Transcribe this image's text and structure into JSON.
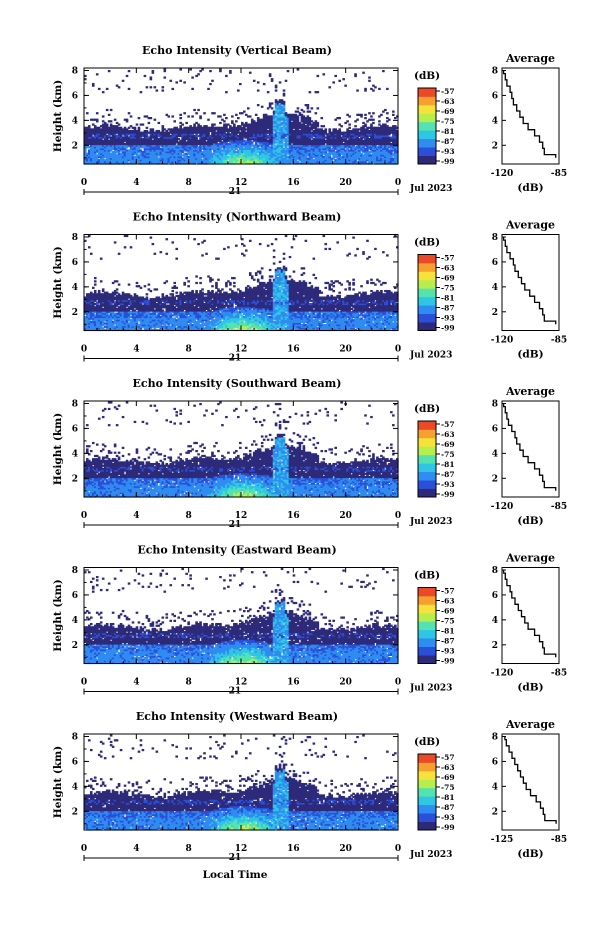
{
  "figure": {
    "xlabel": "Local Time",
    "day_label": "21",
    "month_year_label": "Jul 2023",
    "ylabel": "Height (km)",
    "avg_title": "Average",
    "avg_xlabel": "(dB)",
    "colorbar_unit": "(dB)"
  },
  "chart_data": [
    {
      "type": "heatmap",
      "title": "Echo Intensity (Vertical Beam)",
      "xlabel": "Local Time",
      "ylabel": "Height (km)",
      "x_ticks": [
        "0",
        "4",
        "8",
        "12",
        "16",
        "20",
        "0"
      ],
      "xlim": [
        0,
        24
      ],
      "y_ticks": [
        "2",
        "4",
        "6",
        "8"
      ],
      "ylim": [
        0.5,
        8.2
      ],
      "colorbar": {
        "label": "(dB)",
        "ticks": [
          "-57",
          "-63",
          "-69",
          "-75",
          "-81",
          "-87",
          "-93",
          "-99"
        ],
        "colors": [
          "#2e2a7a",
          "#2b4fd8",
          "#2f8cf0",
          "#2fc6e6",
          "#54e2b0",
          "#b6ee4e",
          "#f6e23a",
          "#f6a030",
          "#ea4a28"
        ]
      },
      "average_profile": {
        "title": "Average",
        "xlabel": "(dB)",
        "x_ticks": [
          "-120",
          "-85"
        ],
        "xlim": [
          -120,
          -85
        ],
        "y_ticks": [
          "2",
          "4",
          "6",
          "8"
        ],
        "ylim": [
          0.5,
          8.2
        ],
        "height_km": [
          8.0,
          7.5,
          7.0,
          6.5,
          6.0,
          5.5,
          5.0,
          4.5,
          4.0,
          3.5,
          3.0,
          2.5,
          2.0,
          1.5,
          1.0
        ],
        "intensity_db": [
          -119,
          -118,
          -117,
          -115,
          -114,
          -113,
          -111,
          -109,
          -107,
          -104,
          -100,
          -97,
          -95,
          -94,
          -87
        ]
      }
    },
    {
      "type": "heatmap",
      "title": "Echo Intensity (Northward Beam)",
      "xlabel": "Local Time",
      "ylabel": "Height (km)",
      "x_ticks": [
        "0",
        "4",
        "8",
        "12",
        "16",
        "20",
        "0"
      ],
      "xlim": [
        0,
        24
      ],
      "y_ticks": [
        "2",
        "4",
        "6",
        "8"
      ],
      "ylim": [
        0.5,
        8.2
      ],
      "colorbar": {
        "label": "(dB)",
        "ticks": [
          "-57",
          "-63",
          "-69",
          "-75",
          "-81",
          "-87",
          "-93",
          "-99"
        ],
        "colors": [
          "#2e2a7a",
          "#2b4fd8",
          "#2f8cf0",
          "#2fc6e6",
          "#54e2b0",
          "#b6ee4e",
          "#f6e23a",
          "#f6a030",
          "#ea4a28"
        ]
      },
      "average_profile": {
        "title": "Average",
        "xlabel": "(dB)",
        "x_ticks": [
          "-120",
          "-85"
        ],
        "xlim": [
          -120,
          -85
        ],
        "y_ticks": [
          "2",
          "4",
          "6",
          "8"
        ],
        "ylim": [
          0.5,
          8.2
        ],
        "height_km": [
          8.0,
          7.5,
          7.0,
          6.5,
          6.0,
          5.5,
          5.0,
          4.5,
          4.0,
          3.5,
          3.0,
          2.5,
          2.0,
          1.5,
          1.0
        ],
        "intensity_db": [
          -119,
          -118,
          -117,
          -115,
          -113,
          -112,
          -110,
          -108,
          -106,
          -103,
          -100,
          -97,
          -95,
          -94,
          -87
        ]
      }
    },
    {
      "type": "heatmap",
      "title": "Echo Intensity (Southward Beam)",
      "xlabel": "Local Time",
      "ylabel": "Height (km)",
      "x_ticks": [
        "0",
        "4",
        "8",
        "12",
        "16",
        "20",
        "0"
      ],
      "xlim": [
        0,
        24
      ],
      "y_ticks": [
        "2",
        "4",
        "6",
        "8"
      ],
      "ylim": [
        0.5,
        8.2
      ],
      "colorbar": {
        "label": "(dB)",
        "ticks": [
          "-57",
          "-63",
          "-69",
          "-75",
          "-81",
          "-87",
          "-93",
          "-99"
        ],
        "colors": [
          "#2e2a7a",
          "#2b4fd8",
          "#2f8cf0",
          "#2fc6e6",
          "#54e2b0",
          "#b6ee4e",
          "#f6e23a",
          "#f6a030",
          "#ea4a28"
        ]
      },
      "average_profile": {
        "title": "Average",
        "xlabel": "(dB)",
        "x_ticks": [
          "-120",
          "-85"
        ],
        "xlim": [
          -120,
          -85
        ],
        "y_ticks": [
          "2",
          "4",
          "6",
          "8"
        ],
        "ylim": [
          0.5,
          8.2
        ],
        "height_km": [
          8.0,
          7.5,
          7.0,
          6.5,
          6.0,
          5.5,
          5.0,
          4.5,
          4.0,
          3.5,
          3.0,
          2.5,
          2.0,
          1.5,
          1.0
        ],
        "intensity_db": [
          -119,
          -118,
          -117,
          -116,
          -114,
          -112,
          -111,
          -109,
          -107,
          -104,
          -100,
          -97,
          -95,
          -94,
          -87
        ]
      }
    },
    {
      "type": "heatmap",
      "title": "Echo Intensity (Eastward Beam)",
      "xlabel": "Local Time",
      "ylabel": "Height (km)",
      "x_ticks": [
        "0",
        "4",
        "8",
        "12",
        "16",
        "20",
        "0"
      ],
      "xlim": [
        0,
        24
      ],
      "y_ticks": [
        "2",
        "4",
        "6",
        "8"
      ],
      "ylim": [
        0.5,
        8.2
      ],
      "colorbar": {
        "label": "(dB)",
        "ticks": [
          "-57",
          "-63",
          "-69",
          "-75",
          "-81",
          "-87",
          "-93",
          "-99"
        ],
        "colors": [
          "#2e2a7a",
          "#2b4fd8",
          "#2f8cf0",
          "#2fc6e6",
          "#54e2b0",
          "#b6ee4e",
          "#f6e23a",
          "#f6a030",
          "#ea4a28"
        ]
      },
      "average_profile": {
        "title": "Average",
        "xlabel": "(dB)",
        "x_ticks": [
          "-120",
          "-85"
        ],
        "xlim": [
          -120,
          -85
        ],
        "y_ticks": [
          "2",
          "4",
          "6",
          "8"
        ],
        "ylim": [
          0.5,
          8.2
        ],
        "height_km": [
          8.0,
          7.5,
          7.0,
          6.5,
          6.0,
          5.5,
          5.0,
          4.5,
          4.0,
          3.5,
          3.0,
          2.5,
          2.0,
          1.5,
          1.0
        ],
        "intensity_db": [
          -119,
          -118,
          -117,
          -115,
          -114,
          -112,
          -110,
          -108,
          -106,
          -104,
          -100,
          -97,
          -95,
          -94,
          -87
        ]
      }
    },
    {
      "type": "heatmap",
      "title": "Echo Intensity (Westward Beam)",
      "xlabel": "Local Time",
      "ylabel": "Height (km)",
      "x_ticks": [
        "0",
        "4",
        "8",
        "12",
        "16",
        "20",
        "0"
      ],
      "xlim": [
        0,
        24
      ],
      "y_ticks": [
        "2",
        "4",
        "6",
        "8"
      ],
      "ylim": [
        0.5,
        8.2
      ],
      "colorbar": {
        "label": "(dB)",
        "ticks": [
          "-57",
          "-63",
          "-69",
          "-75",
          "-81",
          "-87",
          "-93",
          "-99"
        ],
        "colors": [
          "#2e2a7a",
          "#2b4fd8",
          "#2f8cf0",
          "#2fc6e6",
          "#54e2b0",
          "#b6ee4e",
          "#f6e23a",
          "#f6a030",
          "#ea4a28"
        ]
      },
      "average_profile": {
        "title": "Average",
        "xlabel": "(dB)",
        "x_ticks": [
          "-125",
          "-85"
        ],
        "xlim": [
          -125,
          -85
        ],
        "y_ticks": [
          "2",
          "4",
          "6",
          "8"
        ],
        "ylim": [
          0.5,
          8.2
        ],
        "height_km": [
          8.0,
          7.5,
          7.0,
          6.5,
          6.0,
          5.5,
          5.0,
          4.5,
          4.0,
          3.5,
          3.0,
          2.5,
          2.0,
          1.5,
          1.0
        ],
        "intensity_db": [
          -123,
          -122,
          -120,
          -118,
          -116,
          -114,
          -112,
          -110,
          -108,
          -105,
          -101,
          -98,
          -96,
          -95,
          -87
        ]
      }
    }
  ]
}
